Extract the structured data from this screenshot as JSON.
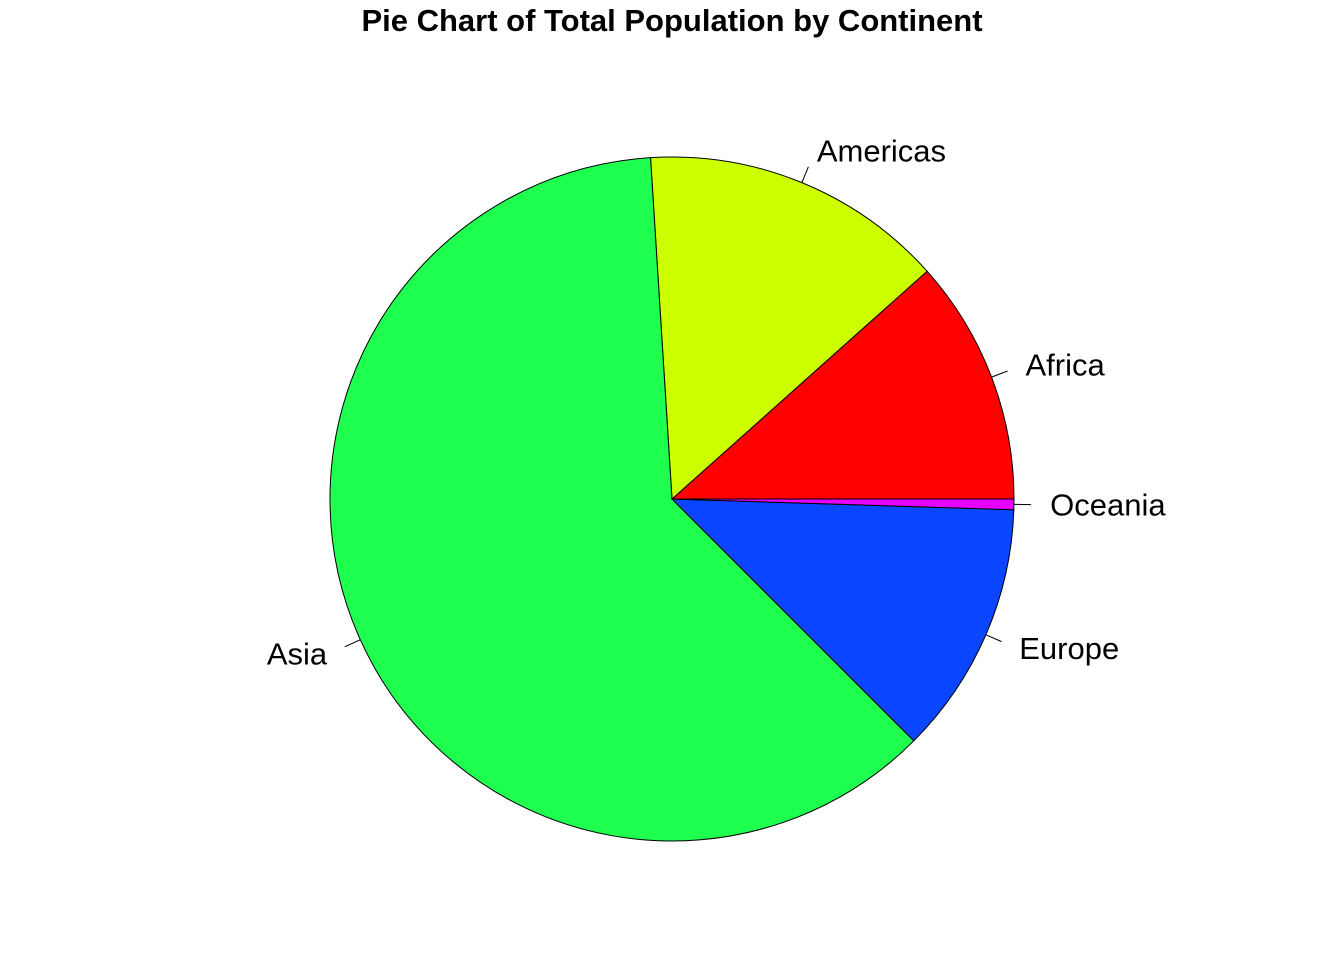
{
  "chart_data": {
    "type": "pie",
    "title": "Pie Chart of Total Population by Continent",
    "categories": [
      "Africa",
      "Americas",
      "Asia",
      "Europe",
      "Oceania"
    ],
    "values": [
      11.6,
      14.4,
      61.5,
      12.0,
      0.5
    ],
    "colors": [
      "#ff0000",
      "#ccff00",
      "#1eff50",
      "#0a46ff",
      "#e600ff"
    ],
    "start_angle_deg": 0,
    "direction": "counterclockwise",
    "border_color": "#000000",
    "legend": "none"
  }
}
